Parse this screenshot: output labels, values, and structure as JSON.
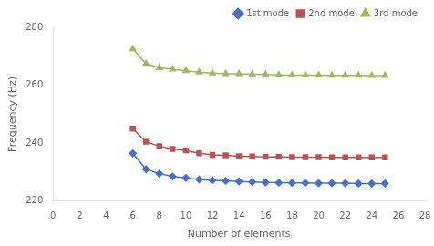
{
  "chart_data": {
    "type": "line",
    "x": [
      6,
      7,
      8,
      9,
      10,
      11,
      12,
      13,
      14,
      15,
      16,
      17,
      18,
      19,
      20,
      21,
      22,
      23,
      24,
      25
    ],
    "series": [
      {
        "name": "1st mode",
        "color": "#4472C4",
        "marker": "diamond",
        "values": [
          236.5,
          231.0,
          229.5,
          228.5,
          228.0,
          227.5,
          227.2,
          227.0,
          226.8,
          226.6,
          226.5,
          226.4,
          226.3,
          226.3,
          226.2,
          226.2,
          226.2,
          226.1,
          226.1,
          226.1
        ]
      },
      {
        "name": "2nd mode",
        "color": "#C0504D",
        "marker": "square",
        "values": [
          245.0,
          240.5,
          239.0,
          238.0,
          237.5,
          236.5,
          236.0,
          235.8,
          235.5,
          235.4,
          235.3,
          235.3,
          235.2,
          235.2,
          235.2,
          235.1,
          235.1,
          235.1,
          235.1,
          235.1
        ]
      },
      {
        "name": "3rd mode",
        "color": "#9BBB59",
        "marker": "triangle",
        "values": [
          272.5,
          267.5,
          266.0,
          265.5,
          265.0,
          264.5,
          264.2,
          264.0,
          264.0,
          263.8,
          263.7,
          263.6,
          263.5,
          263.5,
          263.5,
          263.4,
          263.4,
          263.4,
          263.3,
          263.3
        ]
      }
    ],
    "xlabel": "Number of elements",
    "ylabel": "Frequency (Hz)",
    "xlim": [
      0,
      28
    ],
    "ylim": [
      220,
      280
    ],
    "xticks": [
      0,
      2,
      4,
      6,
      8,
      10,
      12,
      14,
      16,
      18,
      20,
      22,
      24,
      26,
      28
    ],
    "yticks": [
      220,
      240,
      260,
      280
    ],
    "legend": "upper right",
    "grid": false
  }
}
